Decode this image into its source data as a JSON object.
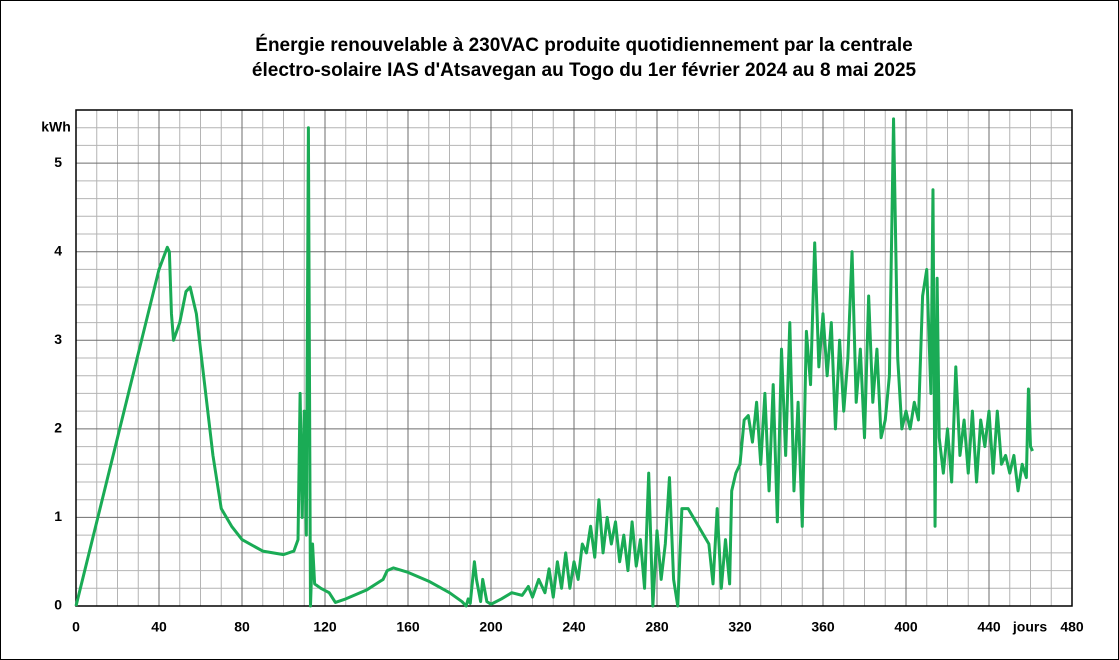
{
  "chart_data": {
    "type": "line",
    "title": [
      "Énergie renouvelable à 230VAC produite quotidiennement par la centrale",
      "électro-solaire IAS d'Atsavegan au Togo du 1er février 2024 au 8 mai 2025"
    ],
    "x_label": "jours",
    "y_label": "kWh",
    "xlim": [
      0,
      480
    ],
    "xticks": [
      0,
      40,
      80,
      120,
      160,
      200,
      240,
      280,
      320,
      360,
      400,
      440,
      480
    ],
    "ylim": [
      0,
      5.6
    ],
    "yticks": [
      0,
      1,
      2,
      3,
      4,
      5
    ],
    "grid": true,
    "series": [
      {
        "color": "#1aab55",
        "x": [
          0,
          10,
          20,
          30,
          40,
          44,
          45,
          46,
          47,
          50,
          53,
          55,
          58,
          62,
          66,
          70,
          75,
          80,
          90,
          100,
          105,
          107,
          108,
          109,
          110,
          111,
          112,
          113,
          114,
          115,
          118,
          122,
          125,
          130,
          140,
          148,
          150,
          153,
          160,
          170,
          180,
          186,
          188,
          189,
          190,
          192,
          193,
          195,
          196,
          198,
          200,
          205,
          210,
          215,
          218,
          220,
          223,
          226,
          228,
          230,
          232,
          234,
          236,
          238,
          240,
          242,
          244,
          246,
          248,
          250,
          252,
          254,
          256,
          258,
          260,
          262,
          264,
          266,
          268,
          270,
          272,
          274,
          276,
          278,
          280,
          282,
          284,
          286,
          288,
          290,
          292,
          295,
          300,
          305,
          307,
          309,
          311,
          313,
          315,
          316,
          318,
          320,
          322,
          324,
          326,
          328,
          330,
          332,
          334,
          336,
          338,
          340,
          342,
          344,
          346,
          348,
          350,
          352,
          354,
          356,
          358,
          360,
          362,
          364,
          366,
          368,
          370,
          372,
          374,
          376,
          378,
          380,
          382,
          384,
          386,
          388,
          390,
          392,
          394,
          396,
          398,
          400,
          402,
          404,
          406,
          408,
          410,
          412,
          413,
          414,
          415,
          416,
          418,
          420,
          422,
          424,
          426,
          428,
          430,
          432,
          434,
          436,
          438,
          440,
          442,
          444,
          446,
          448,
          450,
          452,
          454,
          456,
          458,
          459,
          460,
          461
        ],
        "values": [
          0,
          0.95,
          1.9,
          2.85,
          3.8,
          4.05,
          4.0,
          3.3,
          3.0,
          3.2,
          3.55,
          3.6,
          3.3,
          2.5,
          1.7,
          1.1,
          0.9,
          0.75,
          0.62,
          0.58,
          0.62,
          0.75,
          2.4,
          1.0,
          2.2,
          0.8,
          5.4,
          0,
          0.7,
          0.25,
          0.2,
          0.15,
          0.04,
          0.08,
          0.18,
          0.3,
          0.4,
          0.43,
          0.38,
          0.28,
          0.15,
          0.05,
          0,
          0.08,
          0.03,
          0.5,
          0.3,
          0.05,
          0.3,
          0.05,
          0.02,
          0.08,
          0.15,
          0.12,
          0.22,
          0.1,
          0.3,
          0.15,
          0.42,
          0.1,
          0.5,
          0.2,
          0.6,
          0.2,
          0.5,
          0.3,
          0.7,
          0.6,
          0.9,
          0.55,
          1.2,
          0.6,
          1.0,
          0.7,
          0.95,
          0.5,
          0.8,
          0.4,
          0.95,
          0.45,
          0.75,
          0.2,
          1.5,
          0,
          0.85,
          0.3,
          0.7,
          1.45,
          0.3,
          0,
          1.1,
          1.1,
          0.9,
          0.7,
          0.25,
          1.1,
          0.2,
          0.75,
          0.25,
          1.3,
          1.5,
          1.6,
          2.1,
          2.15,
          1.85,
          2.3,
          1.6,
          2.4,
          1.3,
          2.5,
          0.95,
          2.9,
          1.7,
          3.2,
          1.3,
          2.3,
          0.9,
          3.1,
          2.5,
          4.1,
          2.7,
          3.3,
          2.6,
          3.2,
          2.0,
          3.0,
          2.2,
          2.8,
          4.0,
          2.3,
          2.9,
          1.9,
          3.5,
          2.3,
          2.9,
          1.9,
          2.1,
          2.6,
          5.5,
          2.8,
          2.0,
          2.2,
          2.0,
          2.3,
          2.1,
          3.5,
          3.8,
          2.4,
          4.7,
          0.9,
          3.7,
          1.9,
          1.5,
          2.0,
          1.4,
          2.7,
          1.7,
          2.1,
          1.5,
          2.2,
          1.4,
          2.1,
          1.8,
          2.2,
          1.5,
          2.2,
          1.6,
          1.7,
          1.5,
          1.7,
          1.3,
          1.6,
          1.45,
          2.45,
          1.8,
          1.75
        ]
      }
    ]
  }
}
